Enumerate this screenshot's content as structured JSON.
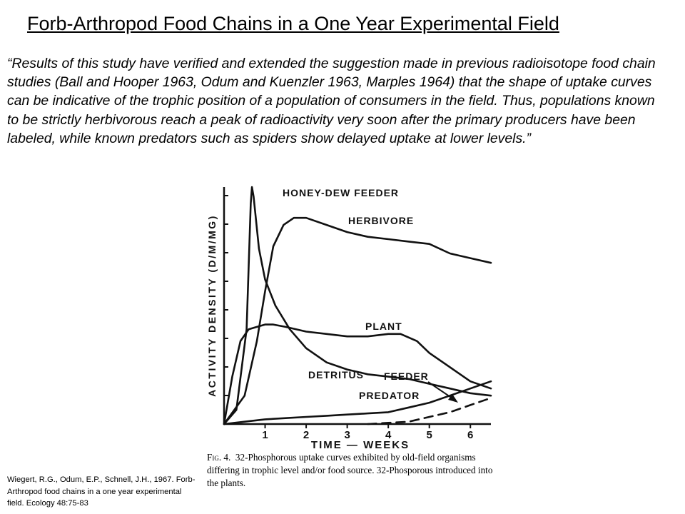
{
  "slide": {
    "title": "Forb-Arthropod Food Chains in a One Year Experimental  Field",
    "quote": "“Results of this study have verified and extended the suggestion made in previous radioisotope food chain studies (Ball and Hooper 1963, Odum and Kuenzler 1963, Marples 1964) that the shape of uptake curves can be indicative of the trophic position of a population of consumers in the field. Thus, populations known to be strictly herbivorous reach a peak of radioactivity very soon after the primary producers have been labeled, while known predators such as spiders show delayed uptake at lower levels.”",
    "citation": "Wiegert, R.G., Odum, E.P., Schnell, J.H., 1967. Forb-Arthropod food chains in a one year experimental field. Ecology 48:75-83"
  },
  "figure": {
    "caption_label": "Fig. 4.",
    "caption_text": "32-Phosphorous uptake curves exhibited by old-field organisms differing in trophic level and/or food source. 32-Phosporous introduced into the plants."
  },
  "chart_data": {
    "type": "line",
    "xlabel": "TIME — WEEKS",
    "ylabel": "ACTIVITY DENSITY (D/M/MG)",
    "xticks": [
      1,
      2,
      3,
      4,
      5,
      6
    ],
    "xlim": [
      0,
      6.5
    ],
    "ylim": [
      0,
      100
    ],
    "grid": false,
    "series": [
      {
        "name": "HONEY-DEW FEEDER",
        "style": "solid",
        "color": "#111111",
        "x": [
          0,
          0.3,
          0.55,
          0.65,
          0.68,
          0.72,
          0.85,
          1.0,
          1.25,
          1.6,
          2.0,
          2.5,
          3.0,
          3.5,
          4.0,
          4.5,
          5.0,
          5.5,
          6.0,
          6.5
        ],
        "y": [
          0,
          6,
          40,
          93,
          100,
          96,
          74,
          61,
          50,
          40,
          32,
          26,
          23,
          21,
          20,
          19,
          17,
          15,
          13,
          12
        ]
      },
      {
        "name": "HERBIVORE",
        "style": "solid",
        "color": "#111111",
        "x": [
          0,
          0.5,
          0.8,
          1.0,
          1.2,
          1.45,
          1.7,
          2.0,
          2.5,
          3.0,
          3.5,
          4.0,
          4.5,
          5.0,
          5.5,
          6.0,
          6.5
        ],
        "y": [
          0,
          12,
          35,
          56,
          75,
          84,
          87,
          87,
          84,
          81,
          79,
          78,
          77,
          76,
          72,
          70,
          68
        ]
      },
      {
        "name": "PLANT",
        "style": "solid",
        "color": "#111111",
        "x": [
          0,
          0.2,
          0.4,
          0.6,
          0.8,
          1.0,
          1.2,
          1.5,
          2.0,
          2.5,
          3.0,
          3.5,
          4.0,
          4.3,
          4.7,
          5.0,
          5.5,
          6.0,
          6.5
        ],
        "y": [
          0,
          20,
          35,
          40,
          41,
          42,
          42,
          41,
          39,
          38,
          37,
          37,
          38,
          38,
          35,
          30,
          24,
          18,
          15
        ]
      },
      {
        "name": "DETRITUS FEEDER",
        "style": "solid",
        "color": "#111111",
        "x": [
          0,
          0.5,
          1.0,
          1.5,
          2.0,
          2.5,
          3.0,
          3.5,
          4.0,
          4.5,
          5.0,
          5.5,
          6.0,
          6.5
        ],
        "y": [
          0,
          1,
          2,
          2.5,
          3,
          3.5,
          4,
          4.5,
          5,
          7,
          9,
          12,
          15,
          18
        ]
      },
      {
        "name": "PREDATOR",
        "style": "dashed",
        "color": "#111111",
        "x": [
          3.5,
          4.0,
          4.5,
          5.0,
          5.5,
          6.0,
          6.5
        ],
        "y": [
          0,
          0.5,
          1,
          3,
          5,
          8,
          11
        ]
      }
    ],
    "annotations": [
      {
        "text": "HONEY-DEW FEEDER",
        "series": "HONEY-DEW FEEDER"
      },
      {
        "text": "HERBIVORE",
        "series": "HERBIVORE"
      },
      {
        "text": "PLANT",
        "series": "PLANT"
      },
      {
        "text": "DETRITUS",
        "series": "DETRITUS FEEDER"
      },
      {
        "text": "FEEDER",
        "series": "DETRITUS FEEDER"
      },
      {
        "text": "PREDATOR",
        "series": "PREDATOR"
      }
    ]
  }
}
